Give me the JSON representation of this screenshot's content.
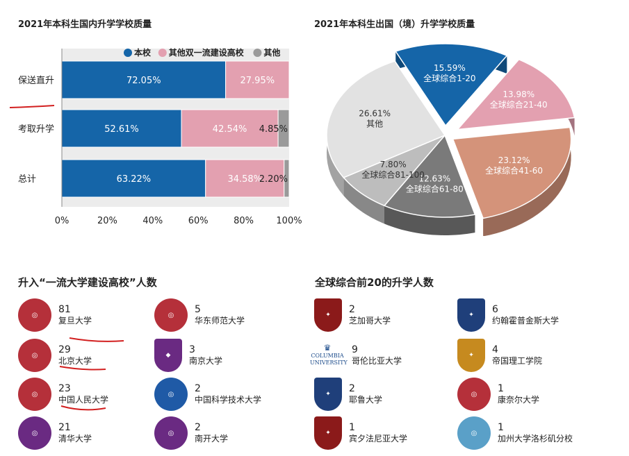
{
  "bar_title": "2021年本科生国内升学学校质量",
  "pie_title": "2021年本科生出国（境）升学学校质量",
  "section1_title": "升入“一流大学建设高校”人数",
  "section2_title": "全球综合前20的升学人数",
  "chart_data": [
    {
      "type": "bar",
      "orientation": "horizontal-stacked",
      "categories": [
        "保送直升",
        "考取升学",
        "总计"
      ],
      "series": [
        {
          "name": "本校",
          "color": "#1565a8",
          "values": [
            72.05,
            52.61,
            63.22
          ],
          "labels": [
            "72.05%",
            "52.61%",
            "63.22%"
          ]
        },
        {
          "name": "其他双一流建设高校",
          "color": "#e3a0b0",
          "values": [
            27.95,
            42.54,
            34.58
          ],
          "labels": [
            "27.95%",
            "42.54%",
            "34.58%"
          ]
        },
        {
          "name": "其他",
          "color": "#9a9a9a",
          "values": [
            0,
            4.85,
            2.2
          ],
          "labels": [
            "",
            "4.85%",
            "2.20%"
          ]
        }
      ],
      "xticks": [
        "0%",
        "20%",
        "40%",
        "60%",
        "80%",
        "100%"
      ],
      "xlim": [
        0,
        100
      ],
      "legend": "top-right"
    },
    {
      "type": "pie",
      "slices": [
        {
          "label": "全球综合1-20",
          "pct": "15.59%",
          "value": 15.59,
          "color": "#1565a8"
        },
        {
          "label": "全球综合21-40",
          "pct": "13.98%",
          "value": 13.98,
          "color": "#e3a0b0"
        },
        {
          "label": "全球综合41-60",
          "pct": "23.12%",
          "value": 23.12,
          "color": "#d4937a"
        },
        {
          "label": "全球综合61-80",
          "pct": "12.63%",
          "value": 12.63,
          "color": "#7a7a7a"
        },
        {
          "label": "全球综合81-100",
          "pct": "7.80%",
          "value": 7.8,
          "color": "#bdbdbd"
        },
        {
          "label": "其他",
          "pct": "26.61%",
          "value": 26.61,
          "color": "#e2e2e2"
        }
      ]
    }
  ],
  "domestic_unis": [
    {
      "count": "81",
      "name": "复旦大学",
      "color": "#b5303a"
    },
    {
      "count": "5",
      "name": "华东师范大学",
      "color": "#b5303a"
    },
    {
      "count": "29",
      "name": "北京大学",
      "color": "#b5303a"
    },
    {
      "count": "3",
      "name": "南京大学",
      "color": "#6a2a82"
    },
    {
      "count": "23",
      "name": "中国人民大学",
      "color": "#b5303a"
    },
    {
      "count": "2",
      "name": "中国科学技术大学",
      "color": "#1f5aa6"
    },
    {
      "count": "21",
      "name": "清华大学",
      "color": "#6a2a82"
    },
    {
      "count": "2",
      "name": "南开大学",
      "color": "#6a2a82"
    }
  ],
  "global_unis": [
    {
      "count": "2",
      "name": "芝加哥大学",
      "color": "#8b1a1a"
    },
    {
      "count": "6",
      "name": "约翰霍普金斯大学",
      "color": "#1f3f7a"
    },
    {
      "count": "9",
      "name": "哥伦比亚大学",
      "logo_text": "COLUMBIA UNIVERSITY"
    },
    {
      "count": "4",
      "name": "帝国理工学院",
      "color": "#c68a1f"
    },
    {
      "count": "2",
      "name": "耶鲁大学",
      "color": "#1f3f7a"
    },
    {
      "count": "1",
      "name": "康奈尔大学",
      "color": "#b5303a"
    },
    {
      "count": "1",
      "name": "宾夕法尼亚大学",
      "color": "#8b1a1a"
    },
    {
      "count": "1",
      "name": "加州大学洛杉矶分校",
      "color": "#5aa0c8"
    }
  ]
}
